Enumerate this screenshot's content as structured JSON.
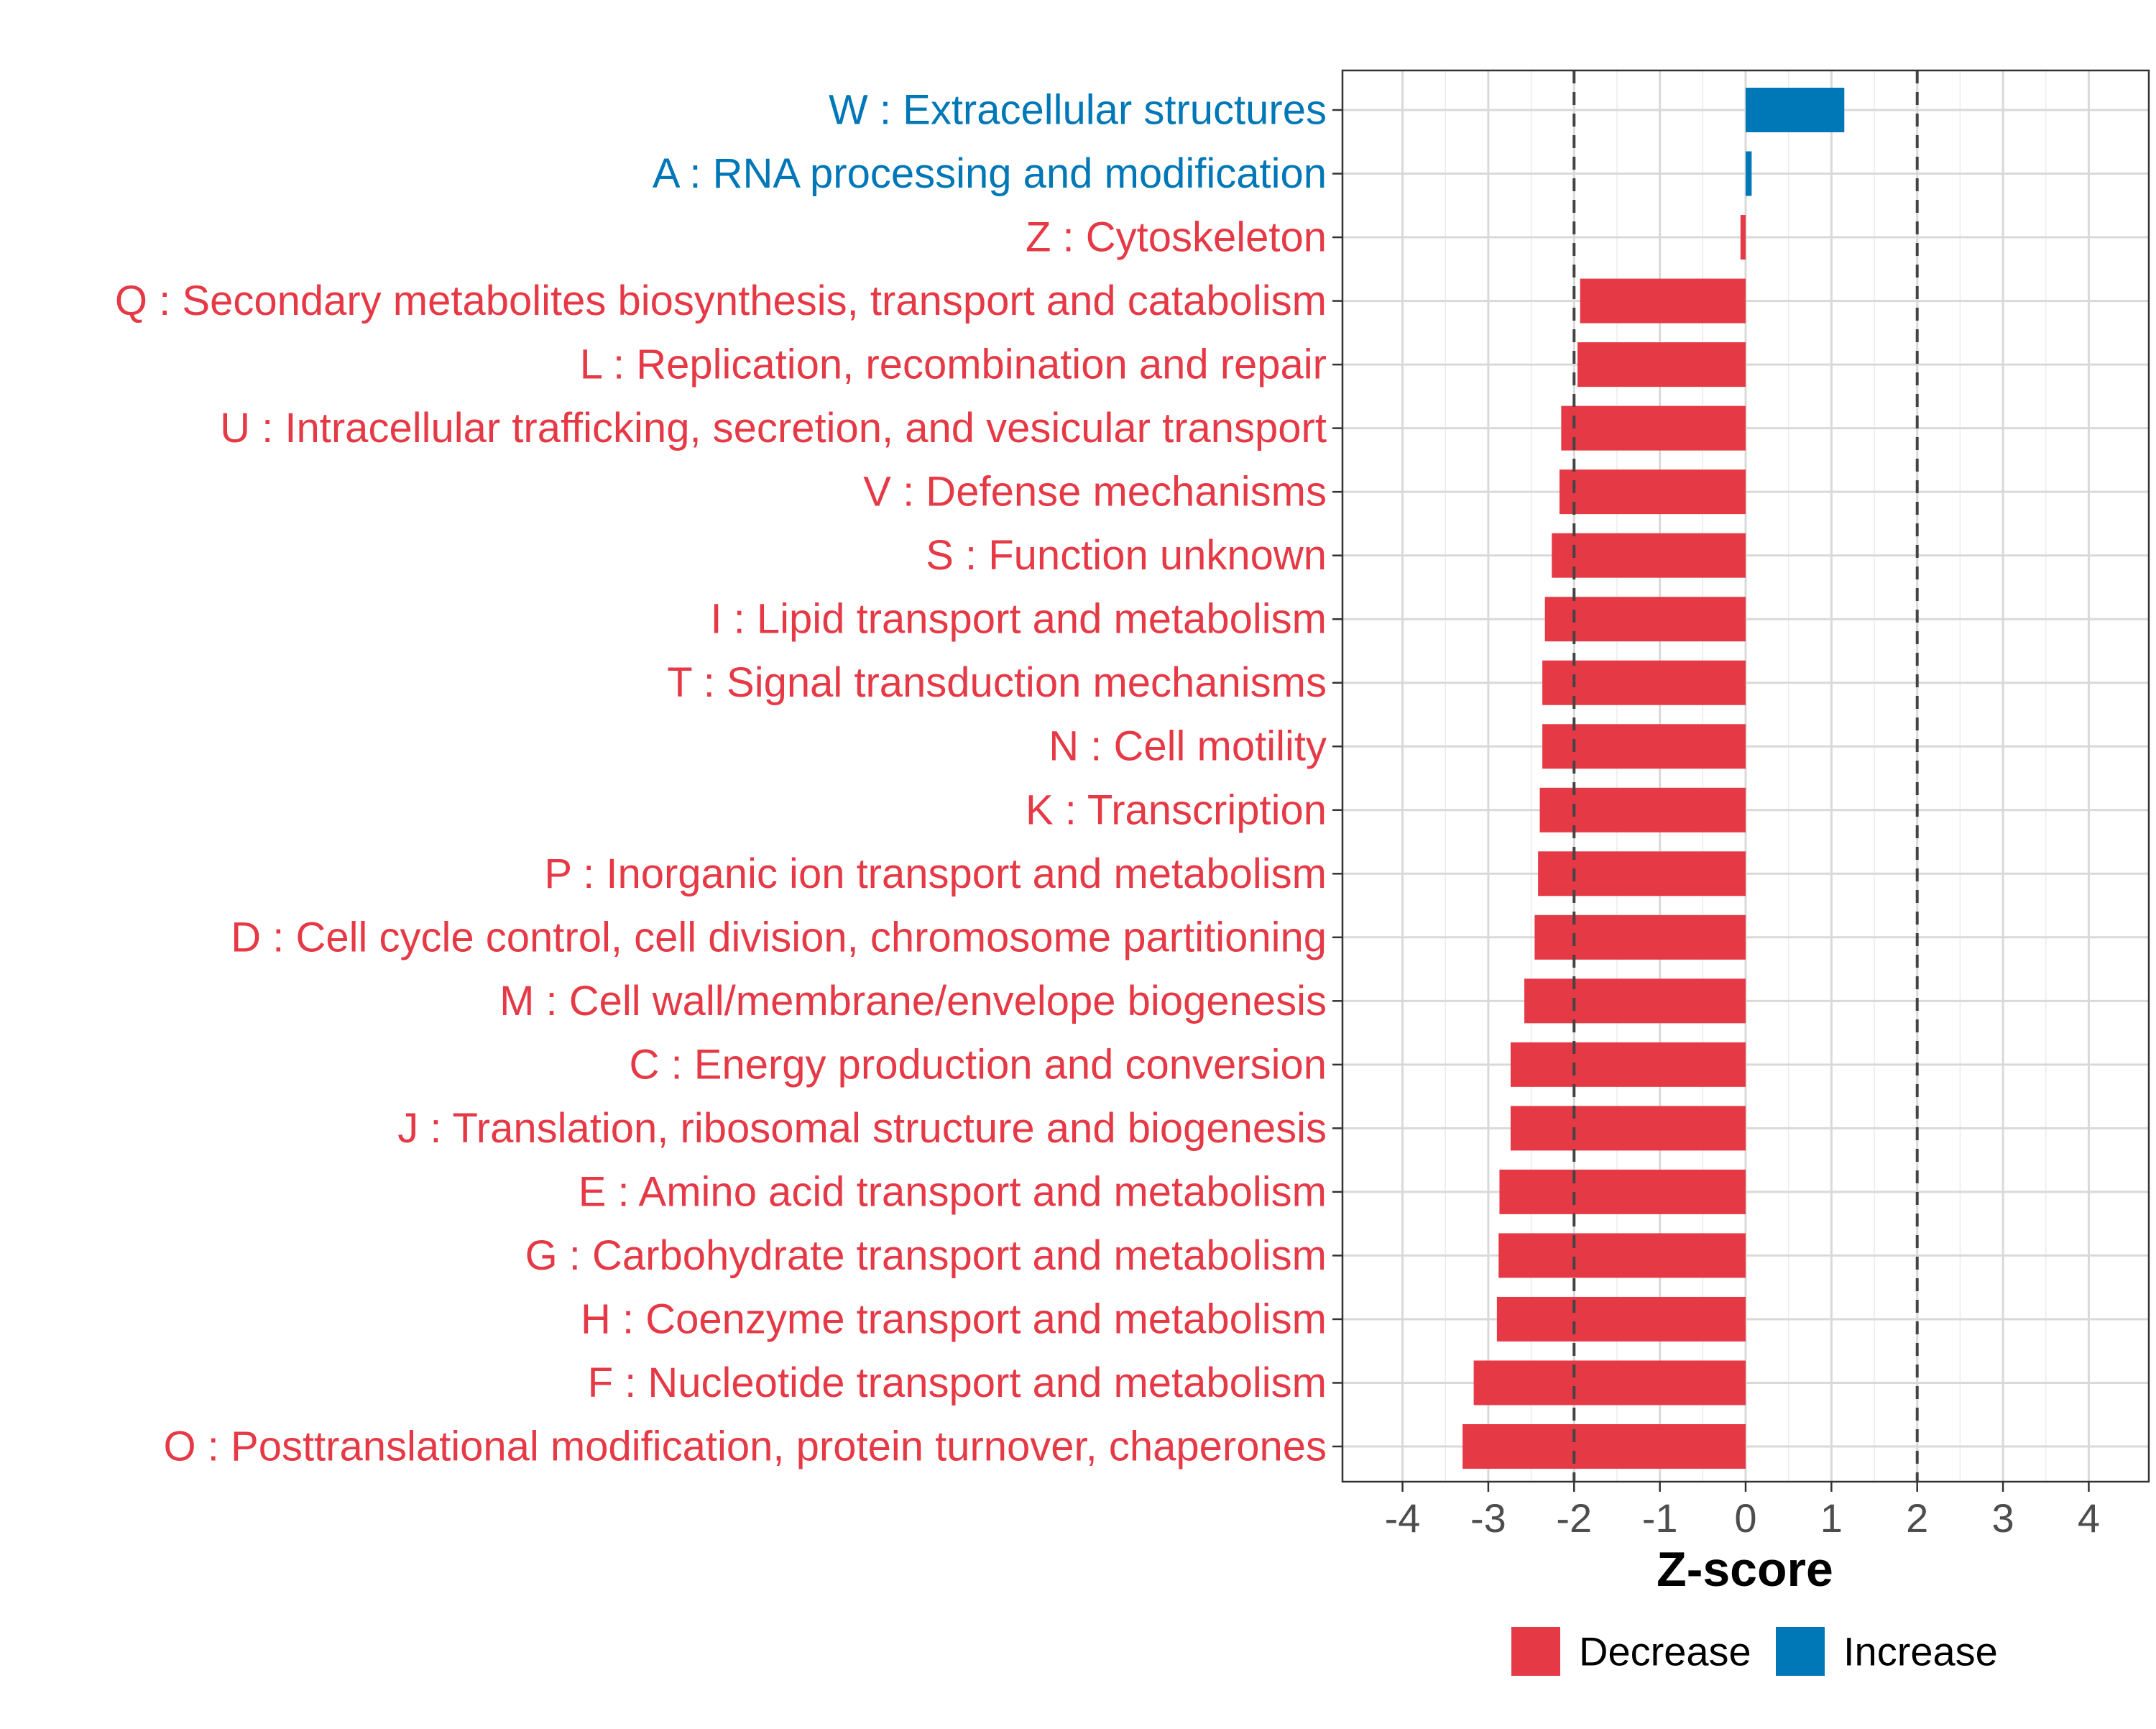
{
  "chart_data": {
    "type": "bar",
    "orientation": "horizontal",
    "xlabel": "Z-score",
    "ylabel": "",
    "xlim": [
      -4.7,
      4.7
    ],
    "xticks": [
      -4,
      -3,
      -2,
      -1,
      0,
      1,
      2,
      3,
      4
    ],
    "reference_lines": [
      -2,
      2
    ],
    "grid": true,
    "legend_position": "bottom",
    "colors": {
      "Decrease": "#E63946",
      "Increase": "#0077B6"
    },
    "legend": [
      {
        "label": "Decrease",
        "color": "#E63946"
      },
      {
        "label": "Increase",
        "color": "#0077B6"
      }
    ],
    "categories": [
      "W : Extracellular structures",
      "A : RNA processing and modification",
      "Z : Cytoskeleton",
      "Q : Secondary metabolites biosynthesis, transport and catabolism",
      "L : Replication, recombination and repair",
      "U : Intracellular trafficking, secretion, and vesicular transport",
      "V : Defense mechanisms",
      "S : Function unknown",
      "I : Lipid transport and metabolism",
      "T : Signal transduction mechanisms",
      "N : Cell motility",
      "K : Transcription",
      "P : Inorganic ion transport and metabolism",
      "D : Cell cycle control, cell division, chromosome partitioning",
      "M : Cell wall/membrane/envelope biogenesis",
      "C : Energy production and conversion",
      "J : Translation, ribosomal structure and biogenesis",
      "E : Amino acid transport and metabolism",
      "G : Carbohydrate transport and metabolism",
      "H : Coenzyme transport and metabolism",
      "F : Nucleotide transport and metabolism",
      "O : Posttranslational modification, protein turnover, chaperones"
    ],
    "values": [
      1.15,
      0.07,
      -0.06,
      -1.93,
      -1.96,
      -2.15,
      -2.17,
      -2.26,
      -2.34,
      -2.37,
      -2.37,
      -2.4,
      -2.42,
      -2.46,
      -2.58,
      -2.74,
      -2.74,
      -2.87,
      -2.88,
      -2.9,
      -3.17,
      -3.3
    ],
    "groups": [
      "Increase",
      "Increase",
      "Decrease",
      "Decrease",
      "Decrease",
      "Decrease",
      "Decrease",
      "Decrease",
      "Decrease",
      "Decrease",
      "Decrease",
      "Decrease",
      "Decrease",
      "Decrease",
      "Decrease",
      "Decrease",
      "Decrease",
      "Decrease",
      "Decrease",
      "Decrease",
      "Decrease",
      "Decrease"
    ]
  }
}
